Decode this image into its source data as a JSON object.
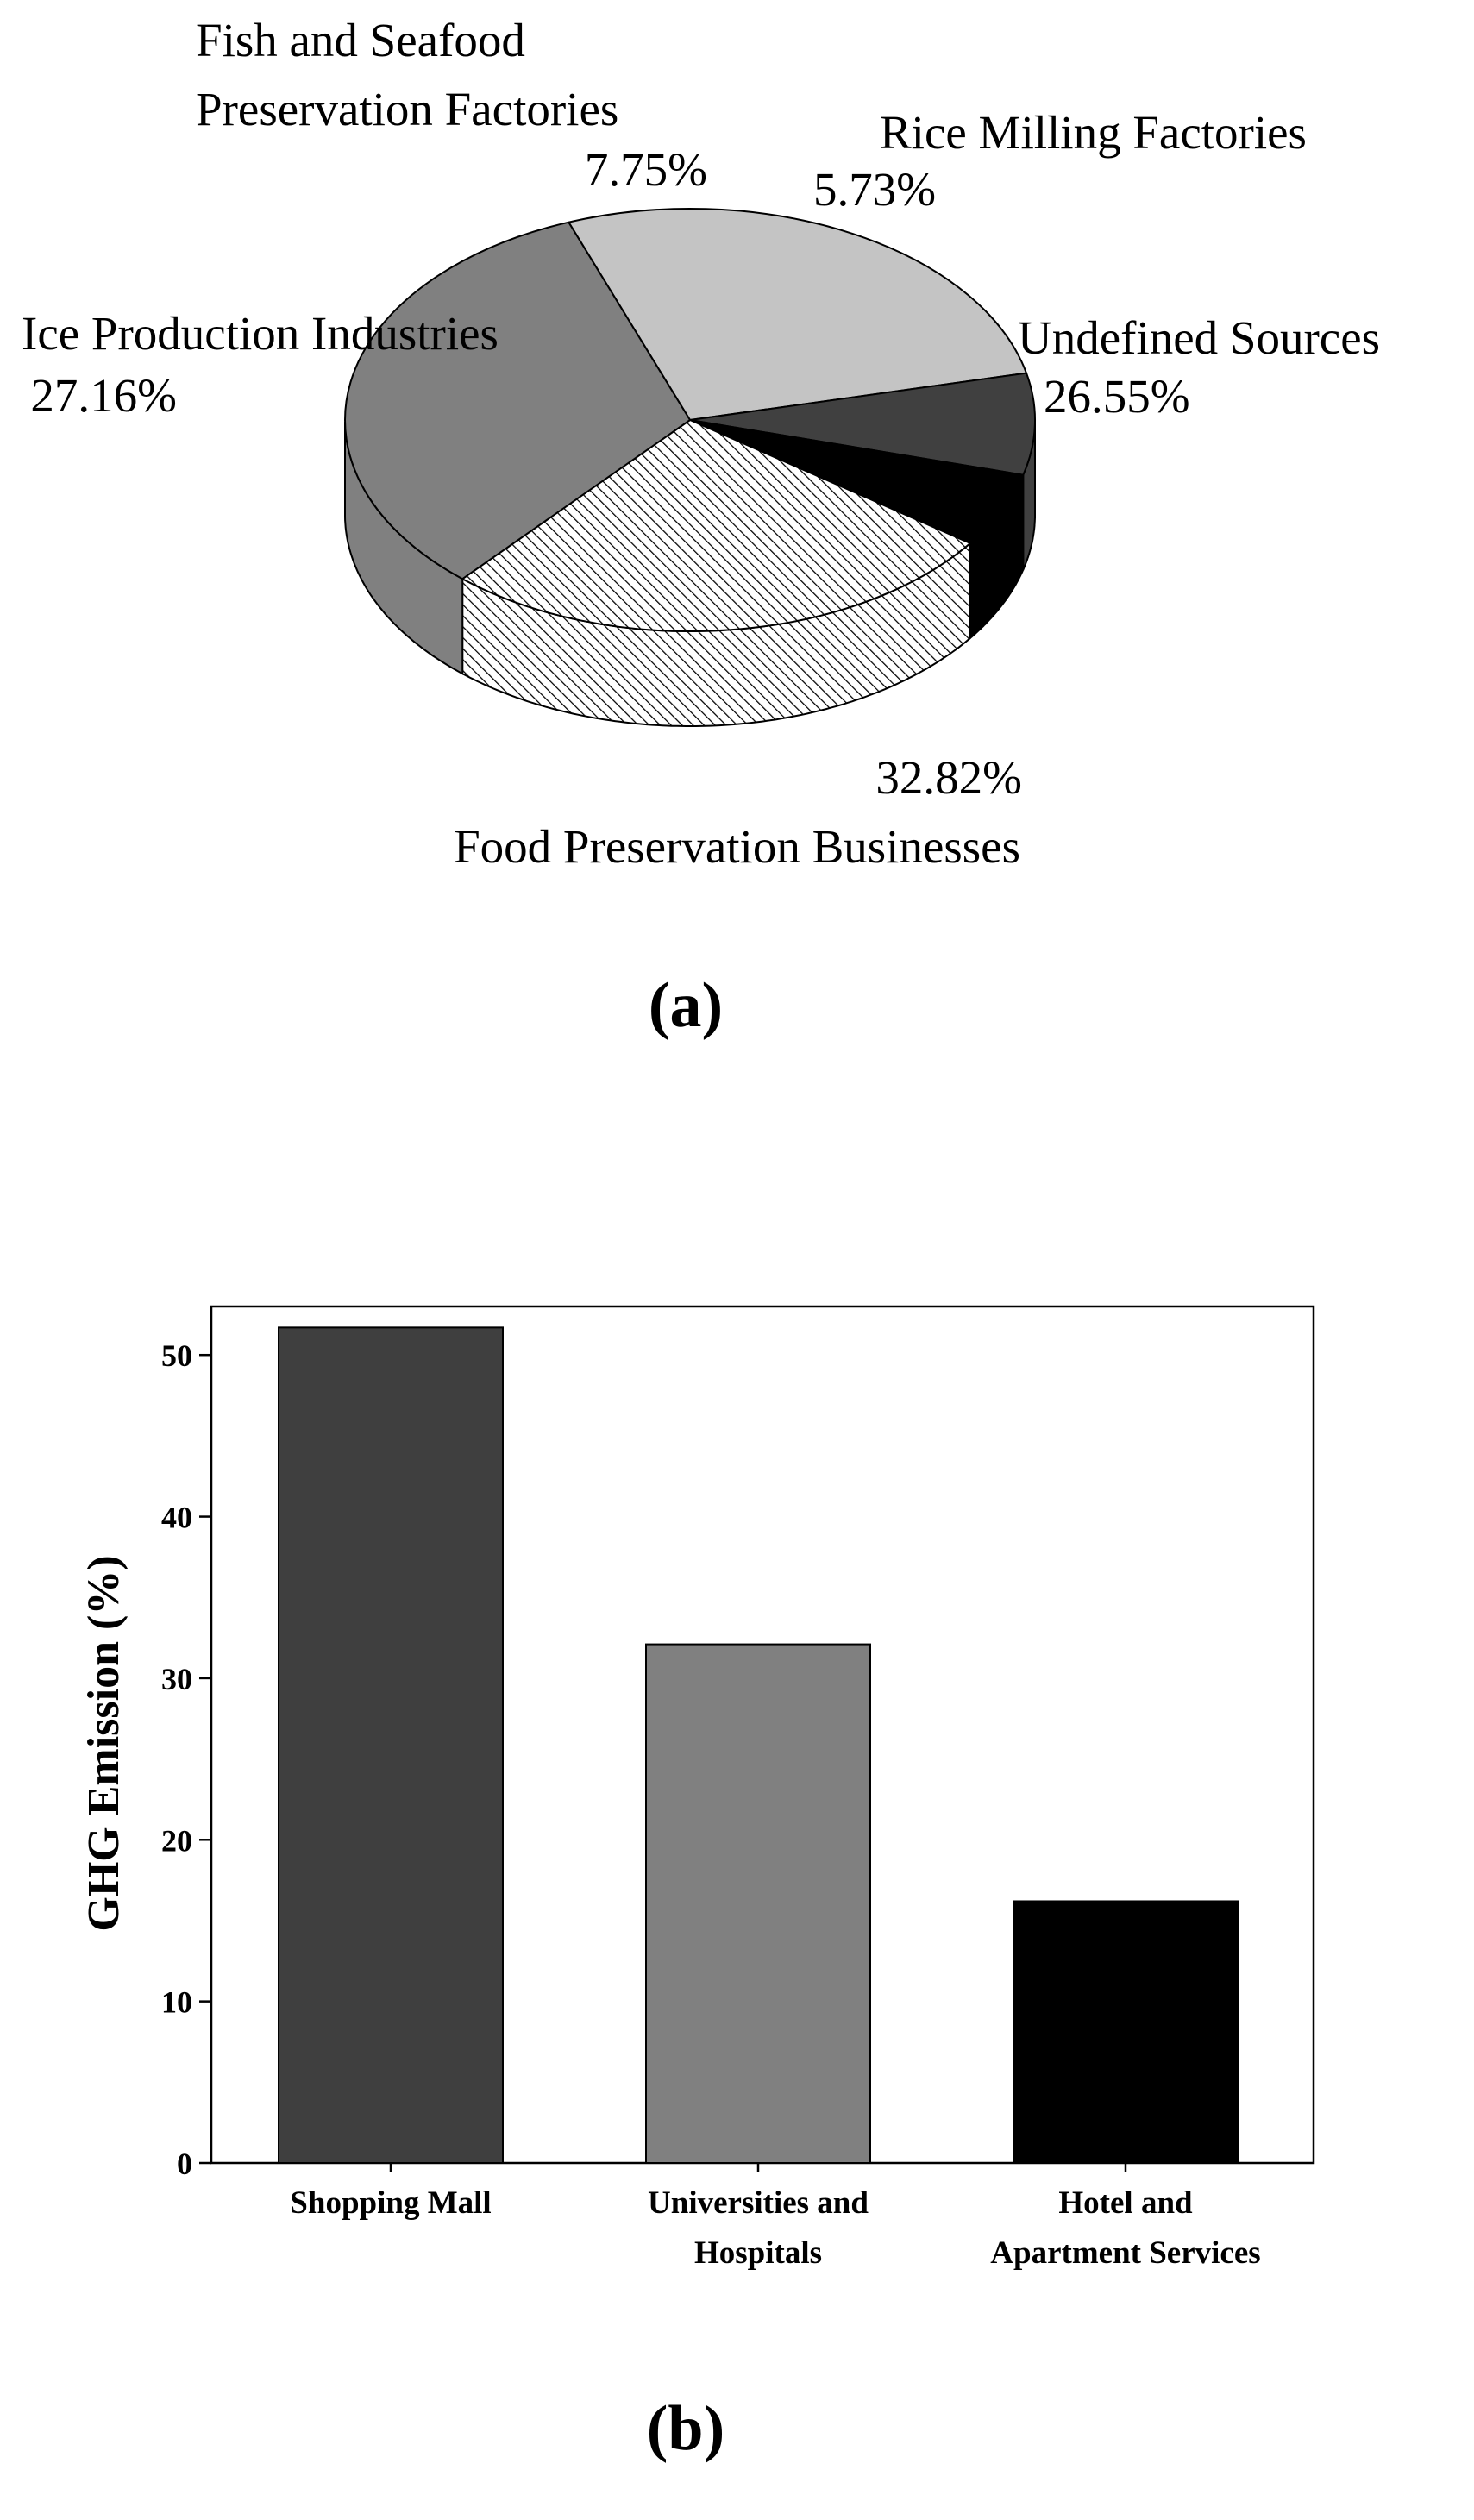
{
  "chart_data": [
    {
      "panel_label": "(a)",
      "type": "pie",
      "style": "3d",
      "slices": [
        {
          "label": "Ice Production Industries",
          "value": 27.16,
          "value_label": "27.16%",
          "color": "#c4c4c4",
          "pattern": "none"
        },
        {
          "label": "Fish and Seafood Preservation Factories",
          "label_lines": [
            "Fish and Seafood",
            "Preservation Factories"
          ],
          "value": 7.75,
          "value_label": "7.75%",
          "color": "#404040",
          "pattern": "none"
        },
        {
          "label": "Rice Milling Factories",
          "value": 5.73,
          "value_label": "5.73%",
          "color": "#000000",
          "pattern": "none"
        },
        {
          "label": "Undefined Sources",
          "value": 26.55,
          "value_label": "26.55%",
          "color": "#ffffff",
          "pattern": "diagonal-hatch"
        },
        {
          "label": "Food Preservation Businesses",
          "value": 32.82,
          "value_label": "32.82%",
          "color": "#808080",
          "pattern": "none"
        }
      ]
    },
    {
      "panel_label": "(b)",
      "type": "bar",
      "categories": [
        "Shopping Mall",
        "Universities and Hospitals",
        "Hotel and Apartment Services"
      ],
      "category_lines": [
        [
          "Shopping Mall"
        ],
        [
          "Universities and",
          "Hospitals"
        ],
        [
          "Hotel and",
          "Apartment Services"
        ]
      ],
      "values": [
        51.7,
        32.1,
        16.2
      ],
      "colors": [
        "#3f3f3f",
        "#808080",
        "#000000"
      ],
      "ylabel": "GHG Emission (%)",
      "xlabel": "",
      "ylim": [
        0,
        53
      ],
      "yticks": [
        0,
        10,
        20,
        30,
        40,
        50
      ],
      "grid": false
    }
  ]
}
